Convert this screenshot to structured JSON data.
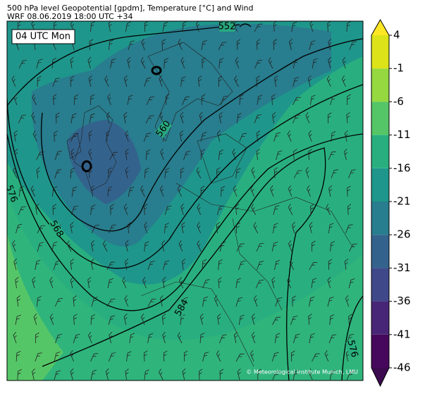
{
  "header": {
    "title": "500 hPa level Geopotential [gpdm], Temperature [°C] and Wind",
    "subtitle": "WRF 08.06.2019 18:00 UTC +34"
  },
  "map": {
    "time_label": "04 UTC Mon",
    "contour_labels": [
      "552",
      "560",
      "568",
      "576",
      "584",
      "576"
    ],
    "credit": "© Meteorological Institute Munich, LMU"
  },
  "colorbar": {
    "ticks": [
      -46,
      -41,
      -36,
      -31,
      -26,
      -21,
      -16,
      -11,
      -6,
      -1,
      4
    ],
    "colors": [
      "#46085c",
      "#482677",
      "#3f4889",
      "#33638d",
      "#287d8e",
      "#1f968b",
      "#29af7f",
      "#55c667",
      "#95d840",
      "#dce319"
    ],
    "extend_colors": [
      "#3b0a4f",
      "#fde725"
    ]
  }
}
